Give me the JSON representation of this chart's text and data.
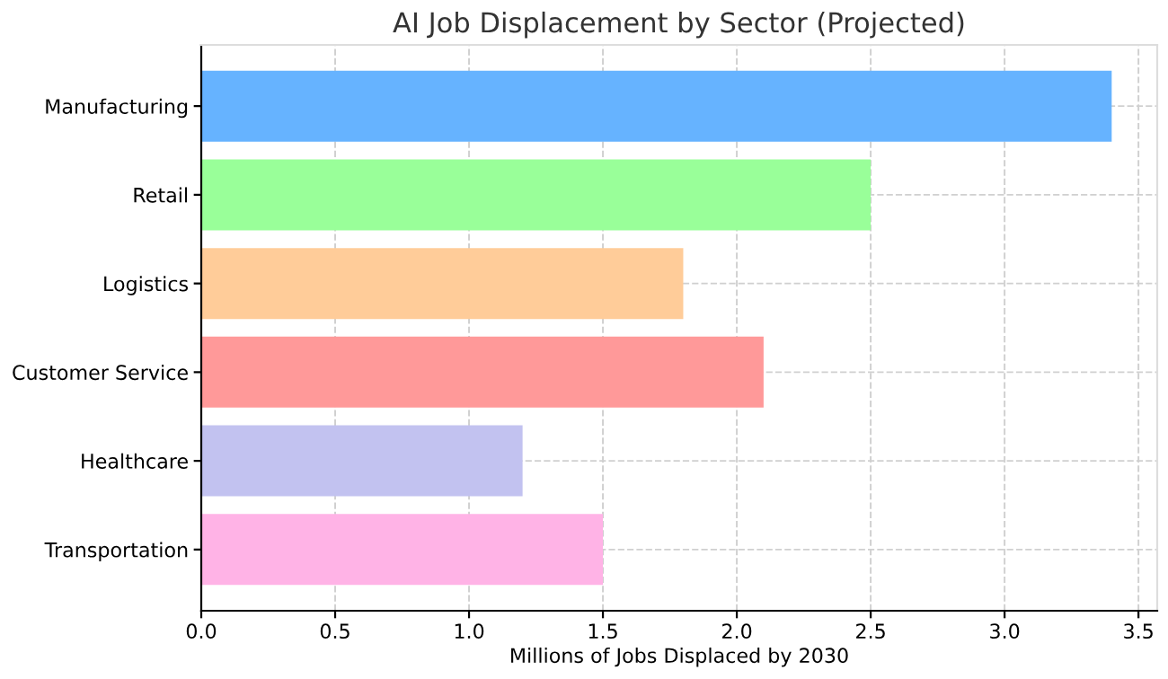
{
  "chart_data": {
    "type": "bar",
    "orientation": "horizontal",
    "title": "AI Job Displacement by Sector (Projected)",
    "xlabel": "Millions of Jobs Displaced by 2030",
    "categories": [
      "Manufacturing",
      "Retail",
      "Logistics",
      "Customer Service",
      "Healthcare",
      "Transportation"
    ],
    "values": [
      3.4,
      2.5,
      1.8,
      2.1,
      1.2,
      1.5
    ],
    "colors": [
      "#66b3ff",
      "#99ff99",
      "#ffcc99",
      "#ff9999",
      "#c2c2f0",
      "#ffb3e6"
    ],
    "xlim": [
      0,
      3.57
    ],
    "xticks": [
      {
        "value": 0,
        "label": "0.0"
      },
      0.5,
      {
        "value": 1,
        "label": "1.0"
      },
      1.5,
      {
        "value": 2,
        "label": "2.0"
      },
      2.5,
      {
        "value": 3,
        "label": "3.0"
      },
      3.5
    ],
    "grid": true
  }
}
